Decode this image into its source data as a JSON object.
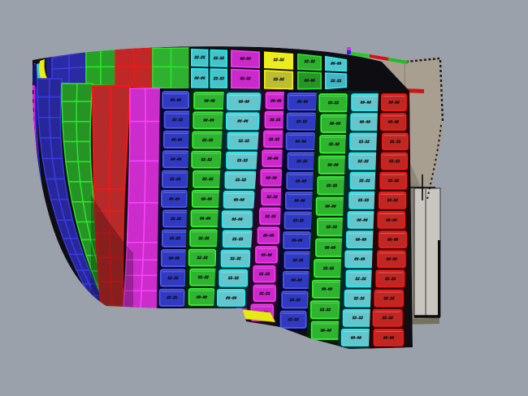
{
  "viewport": {
    "kind": "cad-3d-viewport",
    "background": "#9aa1ab",
    "crosshair_color": "#0a0a0a",
    "hull_shadow_base": "#0e0e12"
  },
  "model": {
    "description": "ship hull shell plating with colored strakes of labeled plates",
    "label_placeholder": "##-##",
    "label_color": "#0c0c0c",
    "labels_legible": false,
    "top_band": {
      "segments": [
        {
          "id": "t1",
          "color": "blue",
          "type": "grid",
          "cols": 2,
          "fill": "#2a2aa2",
          "line": "#3d3de2"
        },
        {
          "id": "t2",
          "color": "green",
          "type": "grid",
          "cols": 2,
          "fill": "#28a028",
          "line": "#2ae42a"
        },
        {
          "id": "t3",
          "color": "red",
          "type": "grid",
          "cols": 2,
          "fill": "#c02828",
          "line": "#f21616"
        },
        {
          "id": "t4",
          "color": "green",
          "type": "grid",
          "cols": 2,
          "fill": "#30b030",
          "line": "#2ae42a"
        },
        {
          "id": "t5",
          "color": "cyan",
          "type": "labels",
          "cols": 2,
          "fill": "#46c2c9",
          "line": "#25eef0"
        },
        {
          "id": "t6",
          "color": "magenta",
          "type": "labels",
          "cols": 1,
          "fill": "#cb29cb",
          "line": "#ef3cef"
        },
        {
          "id": "t7",
          "color": "yellow",
          "type": "labels",
          "cols": 1,
          "fill_top": "#ecec22",
          "fill_bottom": "#bdbd32",
          "line": "#f6f600"
        },
        {
          "id": "t8",
          "color": "dark-green",
          "type": "labels",
          "cols": 1,
          "fill_top": "#2fae2f",
          "fill_bottom": "#289328",
          "line": "#2ae42a"
        },
        {
          "id": "t9",
          "color": "cyan",
          "type": "labels",
          "cols": 1,
          "fill_top": "#52c6ce",
          "fill_bottom": "#46b4c4",
          "line": "#25eef0"
        }
      ]
    },
    "grid_strakes": [
      {
        "id": "s2",
        "color": "blue",
        "cols": 2,
        "fill": "#27279a",
        "line": "#3a3ae0"
      },
      {
        "id": "s3",
        "color": "green",
        "cols": 2,
        "fill": "#259425",
        "line": "#2ce42c"
      },
      {
        "id": "s4",
        "color": "red",
        "cols": 2,
        "fill": "#b62a2a",
        "line": "#f51616"
      },
      {
        "id": "s5",
        "color": "magenta",
        "cols": 2,
        "fill": "#cb2ccb",
        "line": "#f844f8"
      }
    ],
    "plate_columns": [
      {
        "id": "c6",
        "color": "blue",
        "rows": 11,
        "fill": "#3039c2",
        "edge": "#4f5ae6",
        "base": "#05052e"
      },
      {
        "id": "c7",
        "color": "green",
        "rows": 11,
        "fill": "#2eb42e",
        "edge": "#36f536",
        "base": "#032803"
      },
      {
        "id": "c8",
        "color": "cyan",
        "rows": 11,
        "fill": "#64c6cd",
        "edge": "#20eef2",
        "base": "#03282c"
      },
      {
        "id": "c9",
        "color": "magenta",
        "rows": 12,
        "fill": "#cd26cd",
        "edge": "#f23cf2",
        "base": "#2a032a"
      },
      {
        "id": "c10",
        "color": "blue",
        "rows": 12,
        "fill": "#3039c2",
        "edge": "#4f5ae6",
        "base": "#05052e"
      },
      {
        "id": "c11",
        "color": "green",
        "rows": 12,
        "fill": "#2eb42e",
        "edge": "#36f536",
        "base": "#032803"
      },
      {
        "id": "c12",
        "color": "cyan",
        "rows": 13,
        "fill": "#64c6cd",
        "edge": "#20eef2",
        "base": "#03282c"
      },
      {
        "id": "c13",
        "color": "red",
        "rows": 13,
        "fill": "#c02622",
        "edge": "#f51818",
        "base": "#2a0303"
      }
    ],
    "stem_edge_color": "#f318f3",
    "transom": {
      "fill": "#a89f91",
      "dark_region": "#958c7d",
      "shadow": "#8a8375",
      "panel_fill": "#c9c6c0",
      "outline": "#0d0d0d"
    },
    "accents": {
      "yellow_wedge": "#e8e818",
      "edge_strip_green": "#22cc22",
      "edge_strip_red": "#dd1111",
      "corner_dot_magenta": "#e82ae8",
      "corner_dot_blue": "#2a2ae8"
    }
  }
}
